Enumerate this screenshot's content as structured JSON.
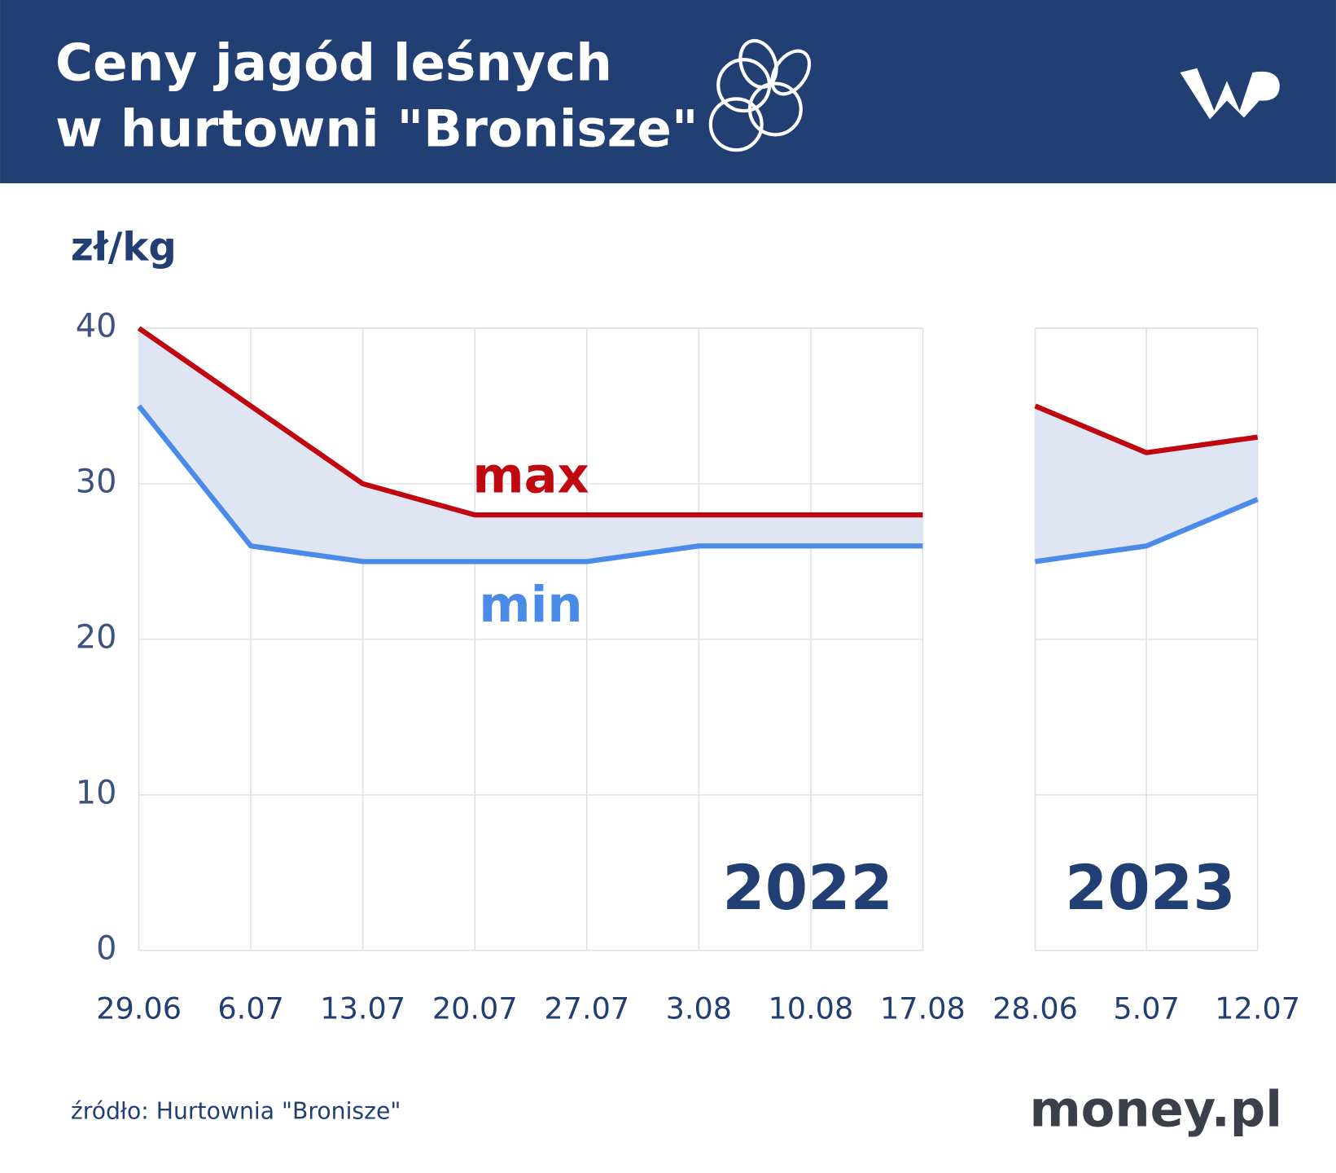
{
  "header": {
    "title_lines": [
      "Ceny jagód leśnych",
      "w hurtowni \"Bronisze\""
    ]
  },
  "chart_data": {
    "type": "line",
    "y_label": "zł/kg",
    "ylim": [
      0,
      40
    ],
    "yticks": [
      0,
      10,
      20,
      30,
      40
    ],
    "grid": true,
    "band_color": "#dfe5f2",
    "series": [
      {
        "name": "max",
        "color": "#c0070f",
        "values": [
          40,
          35,
          30,
          28,
          28,
          28,
          28,
          28,
          35,
          32,
          33
        ]
      },
      {
        "name": "min",
        "color": "#4a8ae8",
        "values": [
          35,
          26,
          25,
          25,
          25,
          26,
          26,
          26,
          25,
          26,
          29
        ]
      }
    ],
    "panels": [
      {
        "label": "2022",
        "categories": [
          "29.06",
          "6.07",
          "13.07",
          "20.07",
          "27.07",
          "3.08",
          "10.08",
          "17.08"
        ]
      },
      {
        "label": "2023",
        "categories": [
          "28.06",
          "5.07",
          "12.07"
        ]
      }
    ]
  },
  "footer": {
    "source": "źródło: Hurtownia \"Bronisze\"",
    "logo": "money.pl"
  }
}
